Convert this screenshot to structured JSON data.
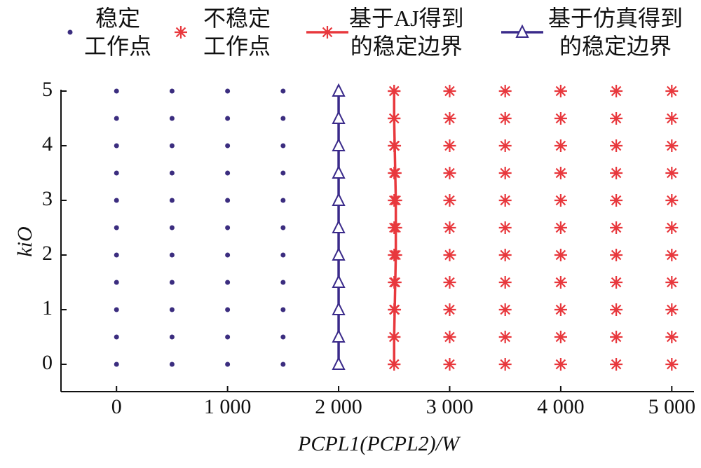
{
  "chart_data": {
    "type": "scatter",
    "xlabel": "PCPL1(PCPL2)/W",
    "ylabel": "kiO",
    "xlim": [
      -500,
      5200
    ],
    "ylim": [
      -0.5,
      5
    ],
    "xticks": [
      0,
      {
        "value": 1000,
        "label": "1 000"
      },
      {
        "value": 2000,
        "label": "2 000"
      },
      {
        "value": 3000,
        "label": "3 000"
      },
      {
        "value": 4000,
        "label": "4 000"
      },
      {
        "value": 5000,
        "label": "5 000"
      }
    ],
    "yticks": [
      0,
      1,
      2,
      3,
      4,
      5
    ],
    "series": [
      {
        "name": "稳定\n工作点",
        "color": "#3b2d7f",
        "marker": "dot",
        "line": false,
        "x": [
          0,
          0,
          0,
          0,
          0,
          0,
          0,
          0,
          0,
          0,
          0,
          500,
          500,
          500,
          500,
          500,
          500,
          500,
          500,
          500,
          500,
          500,
          1000,
          1000,
          1000,
          1000,
          1000,
          1000,
          1000,
          1000,
          1000,
          1000,
          1000,
          1500,
          1500,
          1500,
          1500,
          1500,
          1500,
          1500,
          1500,
          1500,
          1500,
          1500
        ],
        "values": [
          0,
          0.5,
          1,
          1.5,
          2,
          2.5,
          3,
          3.5,
          4,
          4.5,
          5,
          0,
          0.5,
          1,
          1.5,
          2,
          2.5,
          3,
          3.5,
          4,
          4.5,
          5,
          0,
          0.5,
          1,
          1.5,
          2,
          2.5,
          3,
          3.5,
          4,
          4.5,
          5,
          0,
          0.5,
          1,
          1.5,
          2,
          2.5,
          3,
          3.5,
          4,
          4.5,
          5
        ]
      },
      {
        "name": "不稳定\n工作点",
        "color": "#e8383d",
        "marker": "star",
        "line": false,
        "x": [
          2500,
          2500,
          2500,
          2500,
          2500,
          2500,
          2500,
          2500,
          2500,
          2500,
          2500,
          3000,
          3000,
          3000,
          3000,
          3000,
          3000,
          3000,
          3000,
          3000,
          3000,
          3000,
          3500,
          3500,
          3500,
          3500,
          3500,
          3500,
          3500,
          3500,
          3500,
          3500,
          3500,
          4000,
          4000,
          4000,
          4000,
          4000,
          4000,
          4000,
          4000,
          4000,
          4000,
          4000,
          4500,
          4500,
          4500,
          4500,
          4500,
          4500,
          4500,
          4500,
          4500,
          4500,
          4500,
          5000,
          5000,
          5000,
          5000,
          5000,
          5000,
          5000,
          5000,
          5000,
          5000,
          5000
        ],
        "values": [
          0,
          0.5,
          1,
          1.5,
          2,
          2.5,
          3,
          3.5,
          4,
          4.5,
          5,
          0,
          0.5,
          1,
          1.5,
          2,
          2.5,
          3,
          3.5,
          4,
          4.5,
          5,
          0,
          0.5,
          1,
          1.5,
          2,
          2.5,
          3,
          3.5,
          4,
          4.5,
          5,
          0,
          0.5,
          1,
          1.5,
          2,
          2.5,
          3,
          3.5,
          4,
          4.5,
          5,
          0,
          0.5,
          1,
          1.5,
          2,
          2.5,
          3,
          3.5,
          4,
          4.5,
          5,
          0,
          0.5,
          1,
          1.5,
          2,
          2.5,
          3,
          3.5,
          4,
          4.5,
          5
        ]
      },
      {
        "name": "基于AJ得到\n的稳定边界",
        "color": "#e8383d",
        "marker": "star",
        "line": true,
        "x": [
          2500,
          2500,
          2505,
          2510,
          2515,
          2515,
          2515,
          2510,
          2505,
          2500,
          2500
        ],
        "values": [
          0,
          0.5,
          1,
          1.5,
          2,
          2.5,
          3,
          3.5,
          4,
          4.5,
          5
        ]
      },
      {
        "name": "基于仿真得到\n的稳定边界",
        "color": "#3a2a8a",
        "marker": "triangle",
        "line": true,
        "x": [
          2000,
          2000,
          2000,
          2000,
          2000,
          2000,
          2000,
          2000,
          2000,
          2000,
          2000
        ],
        "values": [
          0,
          0.5,
          1,
          1.5,
          2,
          2.5,
          3,
          3.5,
          4,
          4.5,
          5
        ]
      }
    ]
  }
}
